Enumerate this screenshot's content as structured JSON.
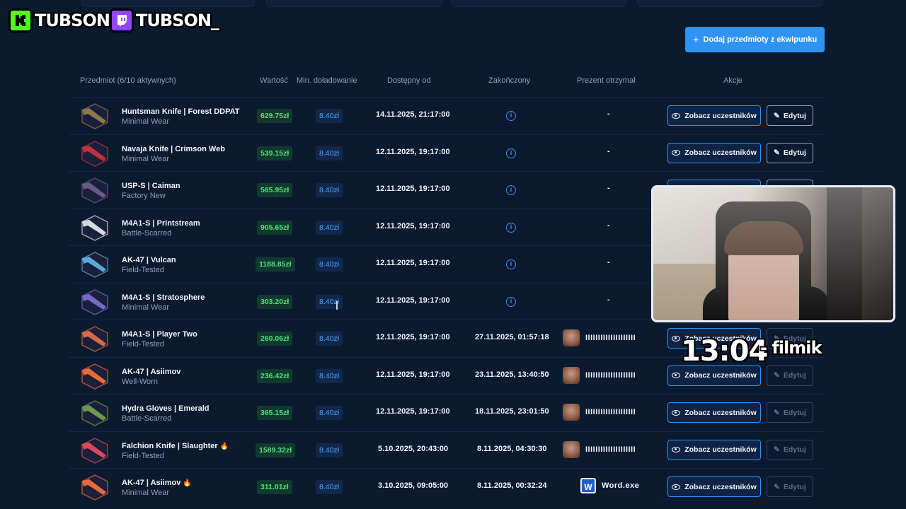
{
  "overlay": {
    "kick_handle": "TUBSON",
    "twitch_handle": "TUBSON_",
    "timer": "13:04",
    "timer_suffix": "- filmik"
  },
  "toolbar": {
    "add_button_label": "Dodaj przedmioty z ekwipunku"
  },
  "table": {
    "headers": {
      "item": "Przedmiot (6/10 aktywnych)",
      "value": "Wartość",
      "min_topup": "Min. doładowanie",
      "available_from": "Dostępny od",
      "ended": "Zakończony",
      "winner": "Prezent otrzymał",
      "actions": "Akcje"
    },
    "see_label": "Zobacz uczestników",
    "edit_label": "Edytuj",
    "rows": [
      {
        "name": "Huntsman Knife | Forest DDPAT",
        "wear": "Minimal Wear",
        "value": "629.75zł",
        "min": "8.40zł",
        "available": "14.11.2025, 21:17:00",
        "ended": "",
        "winner": "-",
        "hot": false,
        "active": true,
        "thumb_color": "#8a7a4a"
      },
      {
        "name": "Navaja Knife | Crimson Web",
        "wear": "Minimal Wear",
        "value": "539.15zł",
        "min": "8.40zł",
        "available": "12.11.2025, 19:17:00",
        "ended": "",
        "winner": "-",
        "hot": false,
        "active": true,
        "thumb_color": "#c0303a"
      },
      {
        "name": "USP-S | Caiman",
        "wear": "Factory New",
        "value": "565.95zł",
        "min": "8.40zł",
        "available": "12.11.2025, 19:17:00",
        "ended": "",
        "winner": "-",
        "hot": false,
        "active": true,
        "thumb_color": "#6a5a8a"
      },
      {
        "name": "M4A1-S | Printstream",
        "wear": "Battle-Scarred",
        "value": "905.65zł",
        "min": "8.40zł",
        "available": "12.11.2025, 19:17:00",
        "ended": "",
        "winner": "-",
        "hot": false,
        "active": true,
        "thumb_color": "#d8d8e0"
      },
      {
        "name": "AK-47 | Vulcan",
        "wear": "Field-Tested",
        "value": "1188.85zł",
        "min": "8.40zł",
        "available": "12.11.2025, 19:17:00",
        "ended": "",
        "winner": "-",
        "hot": false,
        "active": true,
        "thumb_color": "#5aa8d8"
      },
      {
        "name": "M4A1-S | Stratosphere",
        "wear": "Minimal Wear",
        "value": "303.20zł",
        "min": "8.40zł",
        "available": "12.11.2025, 19:17:00",
        "ended": "",
        "winner": "-",
        "hot": false,
        "active": true,
        "thumb_color": "#7a6ac8"
      },
      {
        "name": "M4A1-S | Player Two",
        "wear": "Field-Tested",
        "value": "260.06zł",
        "min": "8.40zł",
        "available": "12.11.2025, 19:17:00",
        "ended": "27.11.2025, 01:57:18",
        "winner": "IIIIIIIIIIIIIIIIIIII",
        "hot": false,
        "active": false,
        "thumb_color": "#d86a4a"
      },
      {
        "name": "AK-47 | Asiimov",
        "wear": "Well-Worn",
        "value": "236.42zł",
        "min": "8.40zł",
        "available": "12.11.2025, 19:17:00",
        "ended": "23.11.2025, 13:40:50",
        "winner": "IIIIIIIIIIIIIIIIIIII",
        "hot": false,
        "active": false,
        "thumb_color": "#e86a3a"
      },
      {
        "name": "Hydra Gloves | Emerald",
        "wear": "Battle-Scarred",
        "value": "365.15zł",
        "min": "8.40zł",
        "available": "12.11.2025, 19:17:00",
        "ended": "18.11.2025, 23:01:50",
        "winner": "IIIIIIIIIIIIIIIIIIII",
        "hot": false,
        "active": false,
        "thumb_color": "#6a9a4a"
      },
      {
        "name": "Falchion Knife | Slaughter",
        "wear": "Field-Tested",
        "value": "1589.32zł",
        "min": "8.40zł",
        "available": "5.10.2025, 20:43:00",
        "ended": "8.11.2025, 04:30:30",
        "winner": "IIIIIIIIIIIIIIIIIIII",
        "hot": true,
        "active": false,
        "thumb_color": "#d84a5a"
      },
      {
        "name": "AK-47 | Asiimov",
        "wear": "Minimal Wear",
        "value": "311.01zł",
        "min": "8.40zł",
        "available": "3.10.2025, 09:05:00",
        "ended": "8.11.2025, 00:32:24",
        "winner": "Word.exe",
        "hot": true,
        "active": false,
        "thumb_color": "#e86a3a"
      }
    ]
  },
  "colors": {
    "background": "#0c1a30",
    "accent": "#2e93f2",
    "value_green": "#4ee07e",
    "info_blue": "#3c8ef0",
    "kick_green": "#53fc18",
    "twitch_purple": "#9146ff"
  },
  "icons": {
    "add": "plus-icon",
    "see": "eye-icon",
    "edit": "edit-icon",
    "info": "info-icon",
    "hot": "fire-icon"
  }
}
